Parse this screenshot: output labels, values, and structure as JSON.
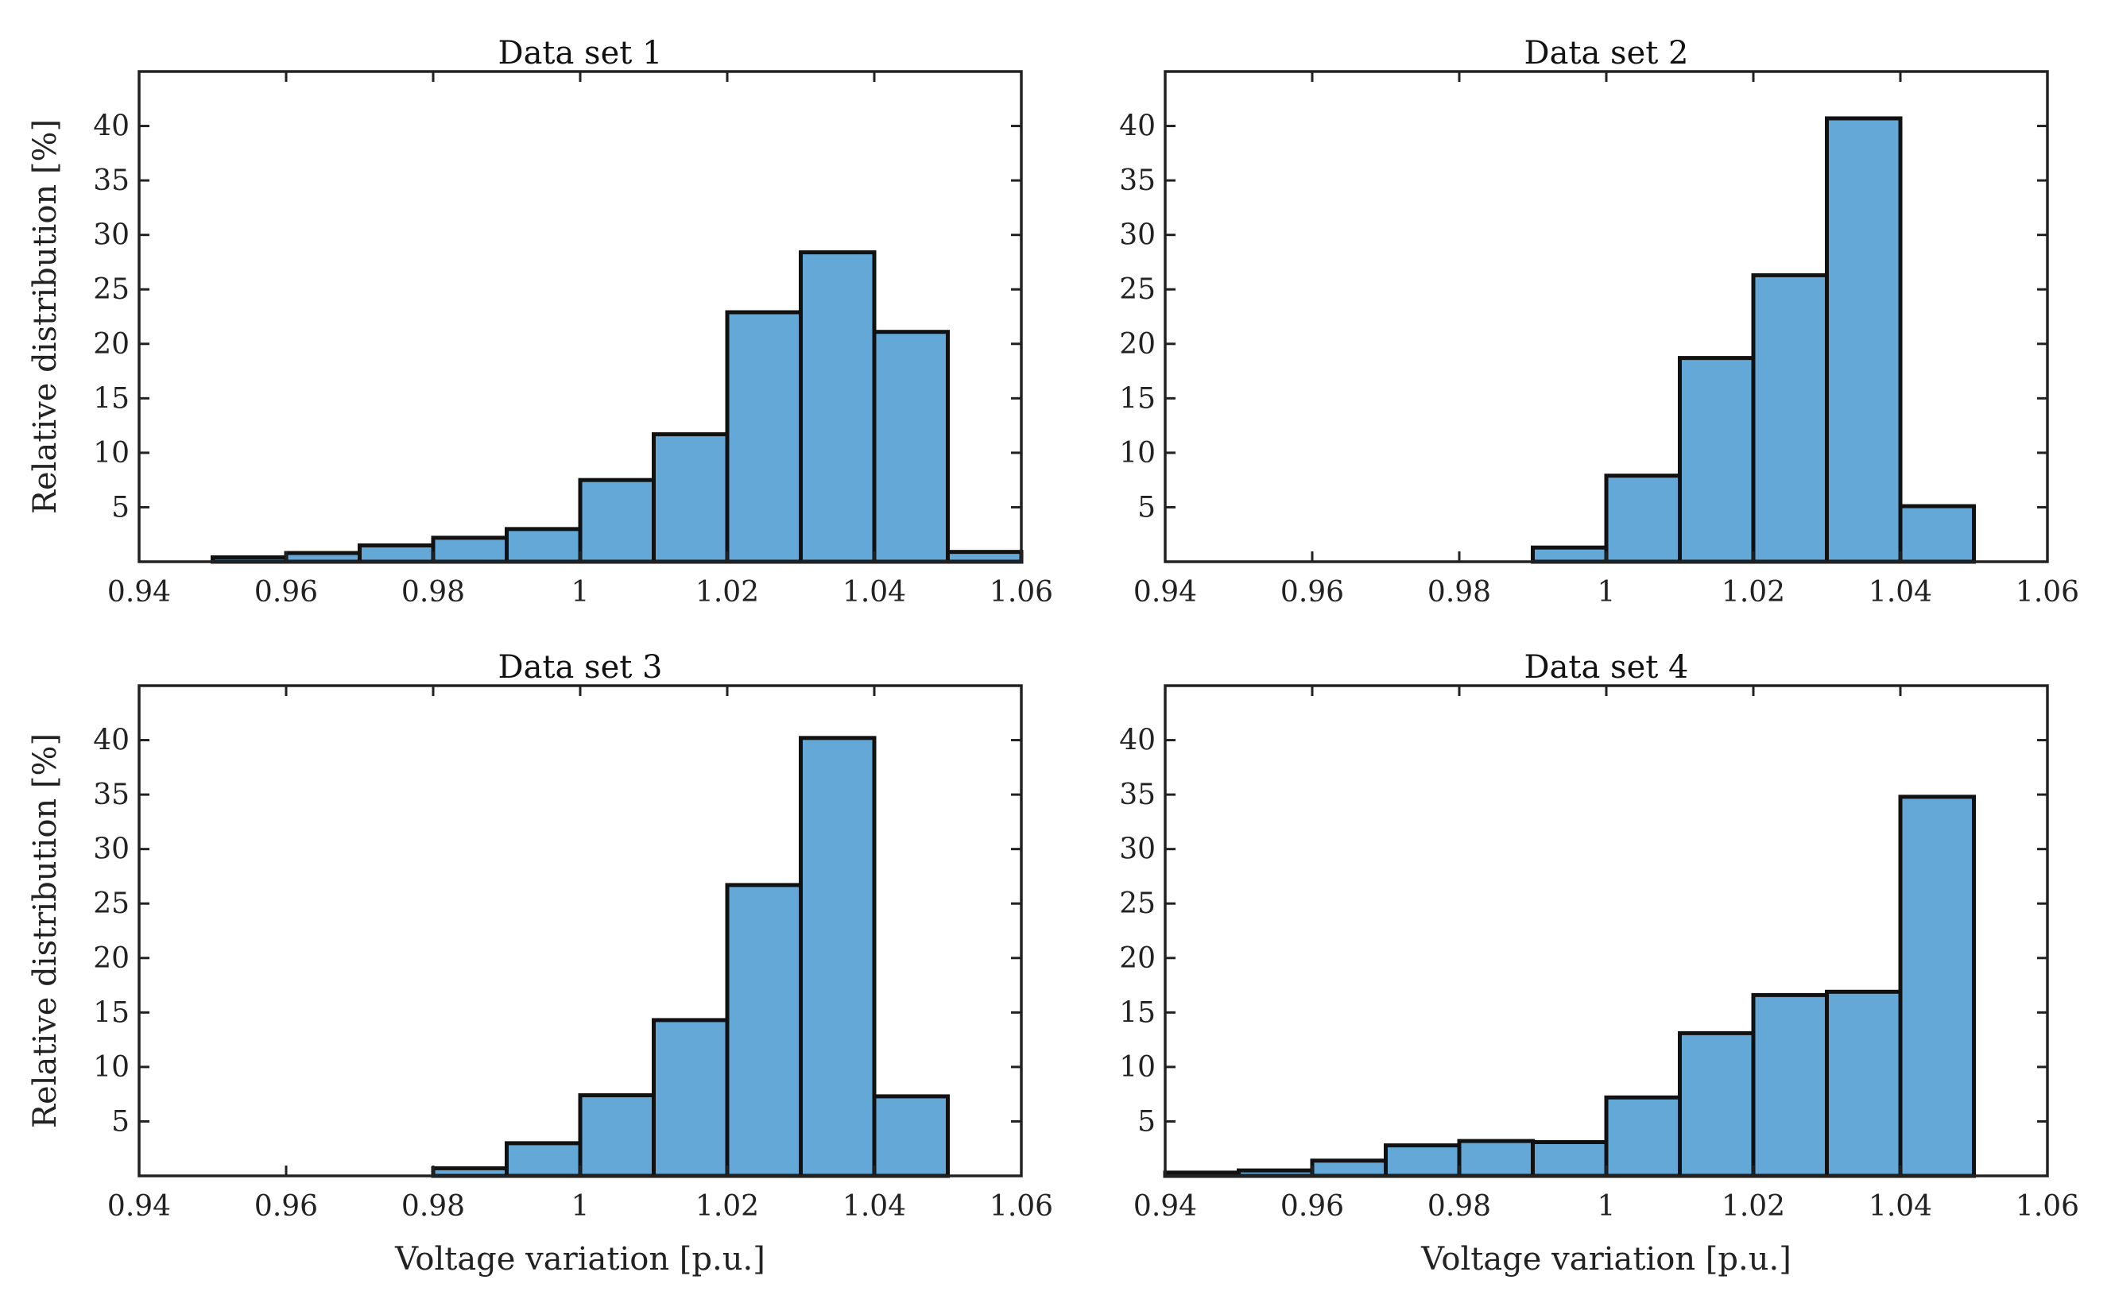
{
  "chart_data": [
    {
      "type": "bar",
      "title": "Data set 1",
      "xlabel": "",
      "ylabel": "Relative distribution [%]",
      "xlim": [
        0.94,
        1.06
      ],
      "ylim": [
        0,
        45
      ],
      "xticks": [
        "0.94",
        "0.96",
        "0.98",
        "1",
        "1.02",
        "1.04",
        "1.06"
      ],
      "yticks": [
        "5",
        "10",
        "15",
        "20",
        "25",
        "30",
        "35",
        "40"
      ],
      "bin_edges": [
        0.95,
        0.96,
        0.97,
        0.98,
        0.99,
        1.0,
        1.01,
        1.02,
        1.03,
        1.04,
        1.05,
        1.06
      ],
      "values": [
        0.4,
        0.8,
        1.5,
        2.2,
        3.0,
        7.5,
        11.7,
        22.9,
        28.4,
        21.1,
        0.9
      ]
    },
    {
      "type": "bar",
      "title": "Data set 2",
      "xlabel": "",
      "ylabel": "",
      "xlim": [
        0.94,
        1.06
      ],
      "ylim": [
        0,
        45
      ],
      "xticks": [
        "0.94",
        "0.96",
        "0.98",
        "1",
        "1.02",
        "1.04",
        "1.06"
      ],
      "yticks": [
        "5",
        "10",
        "15",
        "20",
        "25",
        "30",
        "35",
        "40"
      ],
      "bin_edges": [
        0.99,
        1.0,
        1.01,
        1.02,
        1.03,
        1.04,
        1.05
      ],
      "values": [
        1.3,
        7.9,
        18.7,
        26.3,
        40.7,
        5.1
      ]
    },
    {
      "type": "bar",
      "title": "Data set 3",
      "xlabel": "Voltage variation [p.u.]",
      "ylabel": "Relative distribution [%]",
      "xlim": [
        0.94,
        1.06
      ],
      "ylim": [
        0,
        45
      ],
      "xticks": [
        "0.94",
        "0.96",
        "0.98",
        "1",
        "1.02",
        "1.04",
        "1.06"
      ],
      "yticks": [
        "5",
        "10",
        "15",
        "20",
        "25",
        "30",
        "35",
        "40"
      ],
      "bin_edges": [
        0.98,
        0.99,
        1.0,
        1.01,
        1.02,
        1.03,
        1.04,
        1.05
      ],
      "values": [
        0.7,
        3.0,
        7.4,
        14.3,
        26.7,
        40.2,
        7.3
      ]
    },
    {
      "type": "bar",
      "title": "Data set 4",
      "xlabel": "Voltage variation [p.u.]",
      "ylabel": "",
      "xlim": [
        0.94,
        1.06
      ],
      "ylim": [
        0,
        45
      ],
      "xticks": [
        "0.94",
        "0.96",
        "0.98",
        "1",
        "1.02",
        "1.04",
        "1.06"
      ],
      "yticks": [
        "5",
        "10",
        "15",
        "20",
        "25",
        "30",
        "35",
        "40"
      ],
      "bin_edges": [
        0.94,
        0.95,
        0.96,
        0.97,
        0.98,
        0.99,
        1.0,
        1.01,
        1.02,
        1.03,
        1.04,
        1.05
      ],
      "values": [
        0.3,
        0.5,
        1.4,
        2.8,
        3.2,
        3.1,
        7.2,
        13.1,
        16.6,
        16.9,
        34.8
      ]
    }
  ]
}
